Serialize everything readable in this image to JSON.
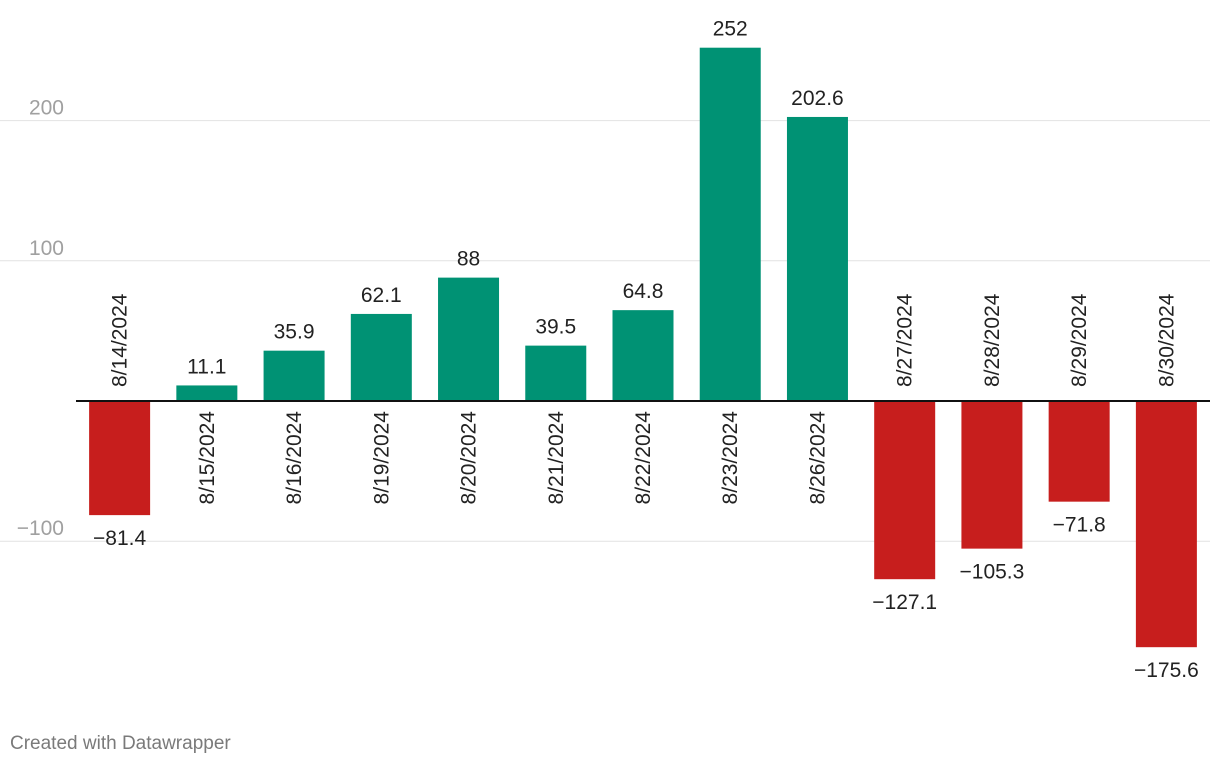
{
  "chart_data": {
    "type": "bar",
    "categories": [
      "8/14/2024",
      "8/15/2024",
      "8/16/2024",
      "8/19/2024",
      "8/20/2024",
      "8/21/2024",
      "8/22/2024",
      "8/23/2024",
      "8/26/2024",
      "8/27/2024",
      "8/28/2024",
      "8/29/2024",
      "8/30/2024"
    ],
    "values": [
      -81.4,
      11.1,
      35.9,
      62.1,
      88,
      39.5,
      64.8,
      252,
      202.6,
      -127.1,
      -105.3,
      -71.8,
      -175.6
    ],
    "value_labels": [
      "−81.4",
      "11.1",
      "35.9",
      "62.1",
      "88",
      "39.5",
      "64.8",
      "252",
      "202.6",
      "−127.1",
      "−105.3",
      "−71.8",
      "−175.6"
    ],
    "yticks": [
      -100,
      100,
      200
    ],
    "ytick_labels": [
      "−100",
      "100",
      "200"
    ],
    "ylim": [
      -207,
      265
    ],
    "grid": true,
    "colors": {
      "positive": "#009274",
      "negative": "#c71e1d",
      "grid": "#e2e2e2",
      "axis_text": "#a0a0a0",
      "label": "#222222",
      "baseline": "#111111"
    }
  },
  "footer": {
    "credit": "Created with Datawrapper"
  }
}
